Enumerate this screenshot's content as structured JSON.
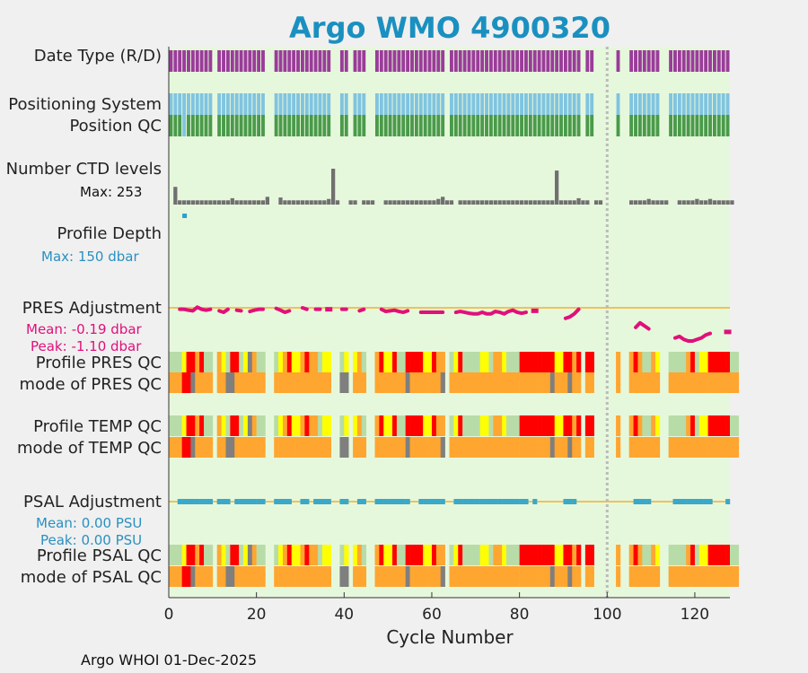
{
  "chart_data": {
    "type": "bar",
    "title": "Argo WMO 4900320",
    "xlabel": "Cycle Number",
    "xlim": [
      0,
      128
    ],
    "xticks": [
      "0",
      "20",
      "40",
      "60",
      "80",
      "100",
      "120"
    ],
    "vline_cycle": 100,
    "rows": {
      "date_type": "Date Type (R/D)",
      "pos_system": "Positioning System",
      "pos_qc": "Position QC",
      "ctd_levels": "Number CTD levels",
      "profile_depth": "Profile Depth",
      "pres_adj": "PRES Adjustment",
      "pres_qc": "Profile PRES QC",
      "pres_mode": "mode of PRES QC",
      "temp_qc": "Profile TEMP QC",
      "temp_mode": "mode of TEMP QC",
      "psal_adj": "PSAL Adjustment",
      "psal_qc": "Profile PSAL QC",
      "psal_mode": "mode of PSAL QC"
    },
    "ctd_max": "Max: 253",
    "depth_max": "Max:  150 dbar",
    "pres_mean": "Mean: -0.19 dbar",
    "pres_peak": "Peak: -1.10 dbar",
    "psal_mean": "Mean: 0.00 PSU",
    "psal_peak": "Peak: 0.00 PSU",
    "missing_cycles": [
      11,
      23,
      24,
      38,
      39,
      42,
      46,
      47,
      64,
      95,
      98,
      99,
      100,
      101,
      102,
      104,
      105,
      113,
      114
    ],
    "ctd_levels": [
      0,
      125,
      30,
      30,
      30,
      30,
      30,
      30,
      30,
      30,
      30,
      30,
      30,
      30,
      45,
      30,
      30,
      30,
      30,
      30,
      30,
      30,
      55,
      0,
      0,
      50,
      30,
      30,
      30,
      30,
      30,
      30,
      30,
      30,
      30,
      30,
      40,
      253,
      30,
      0,
      0,
      30,
      30,
      0,
      30,
      30,
      30,
      0,
      0,
      30,
      30,
      30,
      30,
      30,
      30,
      30,
      30,
      30,
      30,
      30,
      30,
      40,
      55,
      30,
      30,
      0,
      30,
      30,
      30,
      30,
      30,
      30,
      30,
      30,
      30,
      30,
      30,
      30,
      30,
      30,
      30,
      30,
      30,
      30,
      30,
      30,
      30,
      30,
      240,
      30,
      30,
      30,
      30,
      45,
      30,
      30,
      0,
      30,
      30,
      0,
      0,
      0,
      0,
      0,
      0,
      30,
      30,
      30,
      30,
      40,
      30,
      30,
      30,
      30,
      0,
      0,
      30,
      30,
      30,
      30,
      40,
      30,
      30,
      40,
      30,
      30,
      30,
      30,
      30
    ],
    "profile_depth_cycles": [
      4
    ],
    "pres_adj_series": [
      [
        3,
        -0.05
      ],
      [
        4,
        -0.05
      ],
      [
        5,
        -0.08
      ],
      [
        6,
        -0.1
      ],
      [
        7,
        0.02
      ],
      [
        8,
        -0.05
      ],
      [
        9,
        -0.08
      ],
      [
        10,
        -0.05
      ],
      [
        12,
        -0.1
      ],
      [
        13,
        -0.15
      ],
      [
        14,
        -0.05
      ],
      [
        16,
        -0.08
      ],
      [
        17,
        -0.1
      ],
      [
        19,
        -0.12
      ],
      [
        20,
        -0.08
      ],
      [
        21,
        -0.05
      ],
      [
        22,
        -0.05
      ],
      [
        25,
        -0.02
      ],
      [
        26,
        -0.08
      ],
      [
        27,
        -0.15
      ],
      [
        28,
        -0.1
      ],
      [
        31,
        0.0
      ],
      [
        32,
        -0.05
      ],
      [
        34,
        -0.05
      ],
      [
        35,
        -0.05
      ],
      [
        37,
        -0.05
      ],
      [
        40,
        -0.05
      ],
      [
        41,
        -0.05
      ],
      [
        44,
        -0.1
      ],
      [
        45,
        -0.05
      ],
      [
        49,
        -0.05
      ],
      [
        50,
        -0.12
      ],
      [
        51,
        -0.1
      ],
      [
        52,
        -0.08
      ],
      [
        53,
        -0.12
      ],
      [
        54,
        -0.15
      ],
      [
        55,
        -0.1
      ],
      [
        58,
        -0.15
      ],
      [
        59,
        -0.15
      ],
      [
        60,
        -0.15
      ],
      [
        61,
        -0.15
      ],
      [
        62,
        -0.15
      ],
      [
        63,
        -0.15
      ],
      [
        66,
        -0.15
      ],
      [
        67,
        -0.12
      ],
      [
        68,
        -0.15
      ],
      [
        69,
        -0.18
      ],
      [
        70,
        -0.2
      ],
      [
        71,
        -0.2
      ],
      [
        72,
        -0.15
      ],
      [
        73,
        -0.2
      ],
      [
        74,
        -0.2
      ],
      [
        75,
        -0.12
      ],
      [
        76,
        -0.15
      ],
      [
        77,
        -0.2
      ],
      [
        78,
        -0.12
      ],
      [
        79,
        -0.08
      ],
      [
        80,
        -0.15
      ],
      [
        81,
        -0.18
      ],
      [
        82,
        -0.15
      ],
      [
        84,
        -0.1
      ],
      [
        91,
        -0.35
      ],
      [
        92,
        -0.3
      ],
      [
        93,
        -0.2
      ],
      [
        94,
        -0.05
      ],
      [
        107,
        -0.65
      ],
      [
        108,
        -0.5
      ],
      [
        109,
        -0.6
      ],
      [
        110,
        -0.7
      ],
      [
        116,
        -1.0
      ],
      [
        117,
        -0.95
      ],
      [
        118,
        -1.05
      ],
      [
        119,
        -1.1
      ],
      [
        120,
        -1.1
      ],
      [
        121,
        -1.05
      ],
      [
        122,
        -1.0
      ],
      [
        123,
        -0.9
      ],
      [
        124,
        -0.85
      ],
      [
        128,
        -0.8
      ]
    ],
    "psal_adj_cycles": [
      3,
      4,
      5,
      6,
      7,
      8,
      9,
      10,
      12,
      13,
      14,
      16,
      17,
      18,
      19,
      20,
      21,
      22,
      25,
      26,
      27,
      28,
      31,
      32,
      34,
      35,
      36,
      37,
      40,
      41,
      44,
      45,
      48,
      49,
      50,
      51,
      52,
      53,
      54,
      55,
      58,
      59,
      60,
      61,
      62,
      63,
      66,
      67,
      68,
      69,
      70,
      71,
      72,
      73,
      74,
      75,
      76,
      77,
      78,
      79,
      80,
      81,
      82,
      84,
      91,
      92,
      93,
      107,
      108,
      109,
      110,
      116,
      117,
      118,
      119,
      120,
      121,
      122,
      123,
      124,
      128
    ],
    "qc_colors": {
      "1": "#b8dca8",
      "2": "#ffff00",
      "3": "#ffa630",
      "4": "#ff0000",
      "5": "#2a7a2a",
      "6": "#cccccc",
      "7": "#ffdd00",
      "8": "#7f7f7f",
      "9": "#ff4444"
    },
    "pres_qc": "1112443411232144128311111234223433122431222311234224114444224334124111122133211144444444224434444224323123431132351111341224444411",
    "pres_mode": "3334483333833883333333383333333333333338883333333333338333333388333333333333333333333338333833333333333333333333333333333333333333",
    "temp_qc": "1112443411232144128311111234223433122431222311234224114444224334124111122133211144444444224434444224323123431132351111341224444411",
    "temp_mode": "3334483333833883333333383333333333333338883333333333338333333388333333333333333333333338333833333333333333333333333333333333333333",
    "psal_qc": "1112443411232144128311111234223433122431222311234224114444224334124111122133211144444444224434444224323123431132351111341224444411",
    "psal_mode": "3334483333833883333333383333333333333338883333333333338333333388333333333333333333333338333833333333333333333333333333333333333333",
    "colors": {
      "plot_bg": "#e6f8dc",
      "date_type": "#9a3c99",
      "pos_system": "#80c4e0",
      "pos_qc": "#4a9a4a",
      "ctd": "#707070",
      "depth": "#2aa0d0",
      "pres_adj": "#e0107a",
      "zero_line": "#f0b030",
      "psal_adj": "#3aa8c8",
      "title": "#1a90c0",
      "vline": "#bbbbbb"
    }
  },
  "footer": "Argo WHOI 01-Dec-2025"
}
